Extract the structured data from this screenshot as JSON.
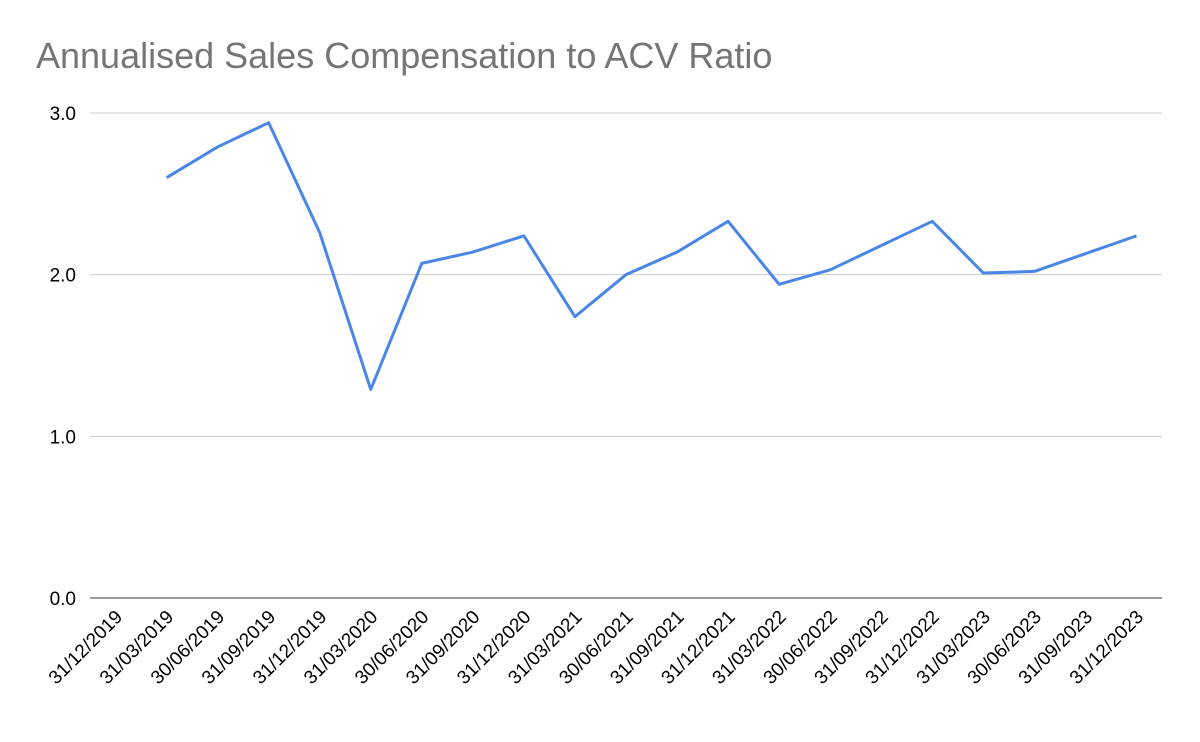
{
  "chart_data": {
    "type": "line",
    "title": "Annualised Sales Compensation to ACV Ratio",
    "categories": [
      "31/12/2019",
      "31/03/2019",
      "30/06/2019",
      "31/09/2019",
      "31/12/2019",
      "31/03/2020",
      "30/06/2020",
      "31/09/2020",
      "31/12/2020",
      "31/03/2021",
      "30/06/2021",
      "31/09/2021",
      "31/12/2021",
      "31/03/2022",
      "30/06/2022",
      "31/09/2022",
      "31/12/2022",
      "31/03/2023",
      "30/06/2023",
      "31/09/2023",
      "31/12/2023"
    ],
    "series": [
      {
        "color": "#4a86e8",
        "values": [
          null,
          2.6,
          2.79,
          2.94,
          2.26,
          1.29,
          2.07,
          2.14,
          2.24,
          1.74,
          2.0,
          2.14,
          2.33,
          1.94,
          2.03,
          2.18,
          2.33,
          2.01,
          2.02,
          2.13,
          2.24
        ]
      }
    ],
    "ylim": [
      0,
      3
    ],
    "yticks": [
      {
        "value": 0,
        "label": "0.0"
      },
      {
        "value": 1,
        "label": "1.0"
      },
      {
        "value": 2,
        "label": "2.0"
      },
      {
        "value": 3,
        "label": "3.0"
      }
    ],
    "grid": true
  }
}
